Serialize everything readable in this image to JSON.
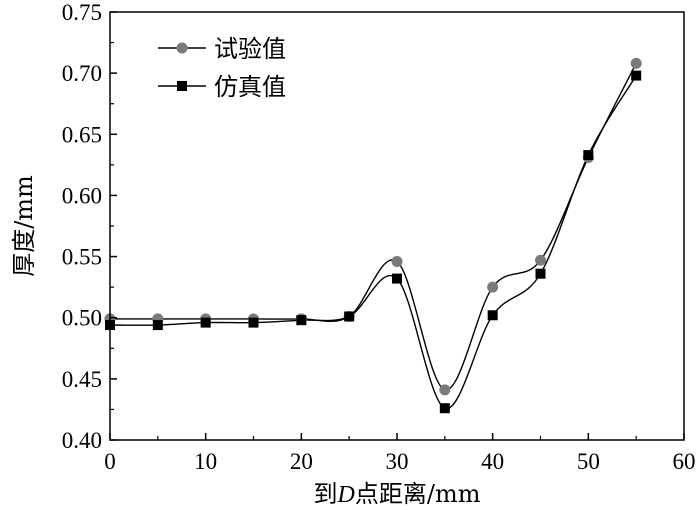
{
  "chart_data": {
    "type": "line",
    "title": "",
    "xlabel": "到D点距离/mm",
    "xlabel_parts": {
      "prefix": "到",
      "italic": "D",
      "suffix": "点距离/mm"
    },
    "ylabel": "厚度/mm",
    "xlim": [
      0,
      60
    ],
    "ylim": [
      0.4,
      0.75
    ],
    "x_ticks": [
      0,
      10,
      20,
      30,
      40,
      50,
      60
    ],
    "x_tick_labels": [
      "0",
      "10",
      "20",
      "30",
      "40",
      "50",
      "60"
    ],
    "y_ticks": [
      0.4,
      0.45,
      0.5,
      0.55,
      0.6,
      0.65,
      0.7,
      0.75
    ],
    "y_tick_labels": [
      "0.40",
      "0.45",
      "0.50",
      "0.55",
      "0.60",
      "0.65",
      "0.70",
      "0.75"
    ],
    "grid": false,
    "legend_position": "top-left",
    "series": [
      {
        "name": "试验值",
        "marker": "circle",
        "color": "#7a7a7a",
        "line_color": "#000000",
        "x": [
          0,
          5,
          10,
          15,
          20,
          25,
          30,
          35,
          40,
          45,
          50,
          55
        ],
        "y": [
          0.499,
          0.499,
          0.499,
          0.499,
          0.499,
          0.501,
          0.546,
          0.441,
          0.525,
          0.547,
          0.631,
          0.708
        ]
      },
      {
        "name": "仿真值",
        "marker": "square",
        "color": "#000000",
        "line_color": "#000000",
        "x": [
          0,
          5,
          10,
          15,
          20,
          25,
          30,
          35,
          40,
          45,
          50,
          55
        ],
        "y": [
          0.494,
          0.494,
          0.496,
          0.496,
          0.498,
          0.501,
          0.532,
          0.426,
          0.502,
          0.536,
          0.633,
          0.698
        ]
      }
    ]
  }
}
